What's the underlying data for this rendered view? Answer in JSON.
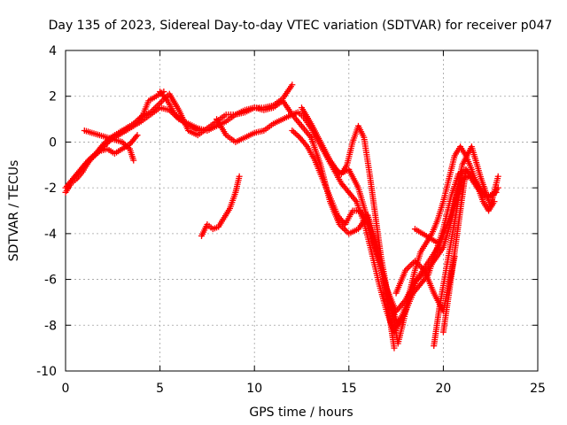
{
  "chart_data": {
    "type": "scatter",
    "title": "Day 135 of 2023, Sidereal Day-to-day VTEC variation (SDTVAR) for receiver p047",
    "xlabel": "GPS time / hours",
    "ylabel": "SDTVAR / TECUs",
    "xlim": [
      0,
      25
    ],
    "ylim": [
      -10,
      4
    ],
    "xticks": [
      "0",
      "5",
      "10",
      "15",
      "20",
      "25"
    ],
    "yticks": [
      "4",
      "2",
      "0",
      "-2",
      "-4",
      "-6",
      "-8",
      "-10"
    ],
    "grid": true,
    "marker": "+",
    "color": "#ff0000",
    "series": [
      {
        "x": [
          0.0,
          0.3,
          0.6,
          0.9,
          1.2,
          1.6,
          2.0,
          2.4,
          2.8,
          3.2,
          3.6,
          4.0,
          4.5,
          5.0,
          5.5,
          6.0,
          6.5,
          7.0,
          7.5,
          8.0,
          8.5,
          9.0,
          9.5,
          10.0,
          10.5,
          11.0,
          11.5,
          12.0
        ],
        "y": [
          -2.2,
          -1.8,
          -1.6,
          -1.3,
          -0.9,
          -0.5,
          -0.2,
          0.1,
          0.3,
          0.5,
          0.7,
          0.9,
          1.2,
          1.5,
          1.4,
          1.0,
          0.8,
          0.6,
          0.5,
          0.7,
          0.9,
          1.2,
          1.4,
          1.5,
          1.5,
          1.6,
          1.9,
          2.5
        ]
      },
      {
        "x": [
          0.0,
          0.4,
          0.8,
          1.2,
          1.6,
          2.0,
          2.4,
          2.8,
          3.2,
          3.6,
          4.0,
          4.5,
          5.0,
          5.5,
          6.0,
          6.5,
          7.0,
          7.5,
          8.0,
          8.5,
          9.0,
          9.5,
          10.0,
          10.5,
          11.0,
          11.5,
          12.0,
          12.5,
          13.0
        ],
        "y": [
          -2.0,
          -1.6,
          -1.2,
          -0.8,
          -0.5,
          -0.1,
          0.2,
          0.4,
          0.6,
          0.8,
          1.1,
          1.3,
          1.7,
          2.1,
          1.4,
          0.5,
          0.3,
          0.6,
          0.9,
          1.2,
          1.2,
          1.3,
          1.5,
          1.4,
          1.5,
          1.8,
          1.2,
          0.7,
          0.2
        ]
      },
      {
        "x": [
          0.2,
          0.6,
          1.0,
          1.4,
          1.8,
          2.2,
          2.6,
          3.0,
          3.4,
          3.8
        ],
        "y": [
          -1.8,
          -1.4,
          -1.0,
          -0.7,
          -0.4,
          -0.3,
          -0.5,
          -0.3,
          -0.1,
          0.3
        ]
      },
      {
        "x": [
          1.0,
          1.4,
          1.8,
          2.2,
          2.6,
          3.0,
          3.4,
          3.6
        ],
        "y": [
          0.5,
          0.4,
          0.3,
          0.2,
          0.1,
          0.0,
          -0.3,
          -0.8
        ]
      },
      {
        "x": [
          7.2,
          7.5,
          7.8,
          8.1,
          8.4,
          8.7,
          9.0,
          9.2
        ],
        "y": [
          -4.1,
          -3.6,
          -3.8,
          -3.7,
          -3.3,
          -2.9,
          -2.2,
          -1.5
        ]
      },
      {
        "x": [
          8.0,
          8.5,
          9.0,
          9.5,
          10.0,
          10.5,
          11.0,
          11.5,
          12.0,
          12.3,
          12.6,
          13.0,
          13.4,
          13.8,
          14.2,
          14.6,
          15.0,
          15.4,
          15.8,
          16.2,
          16.6,
          17.0,
          17.4,
          17.8,
          18.2,
          18.6,
          19.0,
          19.4,
          19.8,
          20.2,
          20.6,
          21.0,
          21.4,
          21.8,
          22.2,
          22.6,
          22.9
        ],
        "y": [
          1.0,
          0.3,
          0.0,
          0.2,
          0.4,
          0.5,
          0.8,
          1.0,
          1.2,
          1.3,
          1.1,
          0.6,
          0.0,
          -0.6,
          -1.2,
          -1.8,
          -2.2,
          -2.6,
          -3.5,
          -4.8,
          -6.2,
          -7.4,
          -8.3,
          -7.6,
          -6.8,
          -6.0,
          -5.5,
          -5.0,
          -4.5,
          -3.6,
          -2.6,
          -1.6,
          -1.5,
          -2.0,
          -2.4,
          -2.3,
          -2.0
        ]
      },
      {
        "x": [
          12.0,
          12.4,
          12.8,
          13.2,
          13.6,
          14.0,
          14.4,
          14.8,
          15.2,
          15.6,
          16.0,
          16.4,
          16.8,
          17.2,
          17.6,
          18.0,
          18.4,
          18.8,
          19.2,
          19.6,
          20.0,
          20.4,
          20.8,
          21.2,
          21.6,
          22.0,
          22.4,
          22.8
        ],
        "y": [
          0.5,
          0.2,
          -0.2,
          -0.8,
          -1.6,
          -2.4,
          -3.2,
          -3.6,
          -3.0,
          -3.0,
          -3.6,
          -4.6,
          -5.8,
          -7.0,
          -8.0,
          -7.4,
          -6.6,
          -6.2,
          -5.8,
          -4.8,
          -3.8,
          -2.4,
          -1.4,
          -1.2,
          -1.6,
          -2.1,
          -2.4,
          -2.2
        ]
      },
      {
        "x": [
          12.5,
          13.0,
          13.5,
          14.0,
          14.5,
          15.0,
          15.5,
          16.0,
          16.5,
          17.0,
          17.5,
          18.0,
          18.5,
          19.0,
          19.5,
          20.0,
          20.5,
          21.0,
          21.5,
          22.0,
          22.5,
          22.9
        ],
        "y": [
          1.5,
          0.8,
          0.0,
          -0.8,
          -1.4,
          -1.2,
          -2.0,
          -3.4,
          -5.0,
          -6.4,
          -7.4,
          -6.9,
          -6.1,
          -5.7,
          -5.2,
          -4.6,
          -3.2,
          -1.0,
          -0.2,
          -1.6,
          -2.8,
          -1.5
        ]
      },
      {
        "x": [
          14.0,
          14.3,
          14.6,
          14.9,
          15.2,
          15.5,
          15.8,
          16.1,
          16.4,
          16.7,
          17.0,
          17.3,
          17.6,
          17.9,
          18.2,
          18.5,
          18.8,
          19.1,
          19.4,
          19.7,
          20.0,
          20.3,
          20.6,
          20.9,
          21.2,
          21.5,
          21.8,
          22.1,
          22.4,
          22.7
        ],
        "y": [
          -0.8,
          -1.2,
          -1.4,
          -1.0,
          0.0,
          0.7,
          0.2,
          -1.4,
          -3.2,
          -5.0,
          -6.4,
          -7.4,
          -8.8,
          -7.8,
          -6.6,
          -5.6,
          -4.8,
          -4.4,
          -4.0,
          -3.4,
          -2.6,
          -1.6,
          -0.6,
          -0.2,
          -0.6,
          -1.2,
          -1.9,
          -2.6,
          -3.0,
          -2.6
        ]
      },
      {
        "x": [
          13.0,
          13.5,
          14.0,
          14.5,
          15.0,
          15.5,
          16.0,
          16.5,
          17.0,
          17.4
        ],
        "y": [
          0.2,
          -1.0,
          -2.6,
          -3.6,
          -4.0,
          -3.8,
          -3.2,
          -4.6,
          -6.8,
          -9.0
        ]
      },
      {
        "x": [
          17.5,
          18.0,
          18.5,
          19.0,
          19.5,
          20.0,
          20.3,
          20.6
        ],
        "y": [
          -6.6,
          -5.6,
          -5.2,
          -5.6,
          -6.6,
          -7.4,
          -6.2,
          -5.0
        ]
      },
      {
        "x": [
          19.5,
          19.8,
          20.1,
          20.4,
          20.7,
          21.0
        ],
        "y": [
          -8.9,
          -7.2,
          -5.8,
          -4.4,
          -3.0,
          -1.4
        ]
      },
      {
        "x": [
          20.0,
          20.3,
          20.6,
          20.9,
          21.2
        ],
        "y": [
          -8.3,
          -6.6,
          -4.8,
          -3.0,
          -1.2
        ]
      },
      {
        "x": [
          18.5,
          18.9,
          19.3,
          19.7
        ],
        "y": [
          -3.8,
          -4.0,
          -4.2,
          -4.4
        ]
      },
      {
        "x": [
          5.0,
          5.4,
          5.8,
          6.2,
          6.6,
          7.0
        ],
        "y": [
          2.2,
          1.8,
          1.2,
          0.9,
          0.7,
          0.5
        ]
      },
      {
        "x": [
          4.0,
          4.4,
          4.8,
          5.2
        ],
        "y": [
          1.0,
          1.8,
          2.0,
          2.2
        ]
      }
    ]
  }
}
